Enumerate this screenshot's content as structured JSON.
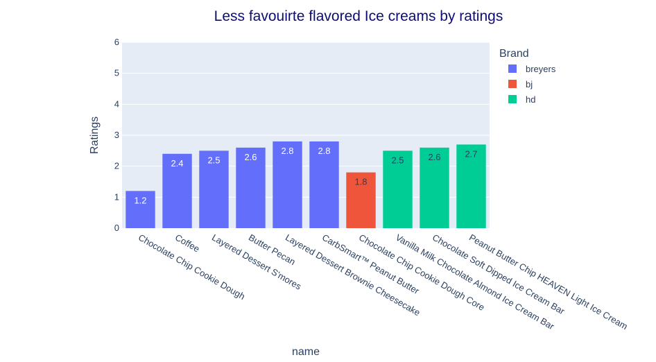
{
  "chart_data": {
    "type": "bar",
    "title": "Less favouirte flavored Ice creams by ratings",
    "xlabel": "name",
    "ylabel": "Ratings",
    "ylim": [
      0,
      6
    ],
    "yticks": [
      0,
      1,
      2,
      3,
      4,
      5,
      6
    ],
    "grid": true,
    "legend_position": "top-right",
    "legend_title": "Brand",
    "categories": [
      "Chocolate Chip Cookie Dough",
      "Coffee",
      "Layered Dessert S'mores",
      "Butter Pecan",
      "Layered Dessert Brownie Cheesecake",
      "CarbSmart™ Peanut Butter",
      "Chocolate Chip Cookie Dough Core",
      "Vanilla Milk Chocolate Almond Ice Cream Bar",
      "Chocolate Soft Dipped Ice Cream Bar",
      "Peanut Butter Chip HEAVEN Light Ice Cream"
    ],
    "series": [
      {
        "name": "breyers",
        "color": "#636efa",
        "label_color": "#ffffff",
        "values": [
          1.2,
          2.4,
          2.5,
          2.6,
          2.8,
          2.8,
          null,
          null,
          null,
          null
        ],
        "labels": [
          "1.2",
          "2.4",
          "2.5",
          "2.6",
          "2.8",
          "2.8",
          null,
          null,
          null,
          null
        ]
      },
      {
        "name": "bj",
        "color": "#ef553b",
        "label_color": "#2a3f5f",
        "values": [
          null,
          null,
          null,
          null,
          null,
          null,
          1.8,
          null,
          null,
          null
        ],
        "labels": [
          null,
          null,
          null,
          null,
          null,
          null,
          "1.8",
          null,
          null,
          null
        ]
      },
      {
        "name": "hd",
        "color": "#00cc96",
        "label_color": "#2a3f5f",
        "values": [
          null,
          null,
          null,
          null,
          null,
          null,
          null,
          2.5,
          2.6,
          2.7
        ],
        "labels": [
          null,
          null,
          null,
          null,
          null,
          null,
          null,
          "2.5",
          "2.6",
          "2.7"
        ]
      }
    ]
  }
}
